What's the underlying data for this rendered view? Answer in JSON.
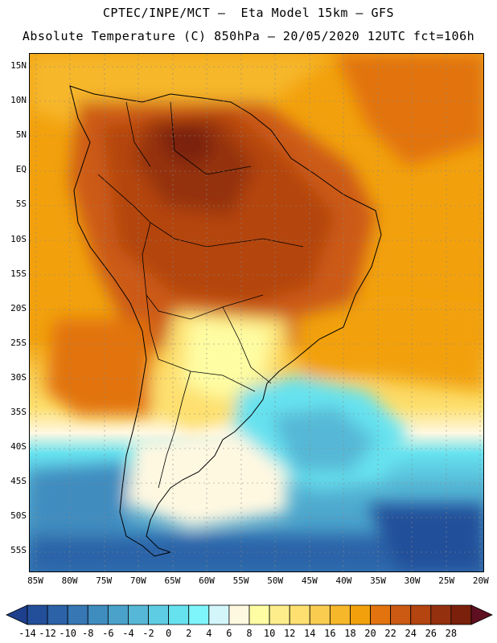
{
  "header": {
    "line1": "CPTEC/INPE/MCT –  Eta Model 15km – GFS",
    "line2": "Absolute Temperature (C) 850hPa – 20/05/2020 12UTC fct=106h"
  },
  "map": {
    "lat_labels": [
      "15N",
      "10N",
      "5N",
      "EQ",
      "5S",
      "10S",
      "15S",
      "20S",
      "25S",
      "30S",
      "35S",
      "40S",
      "45S",
      "50S",
      "55S"
    ],
    "lon_labels": [
      "85W",
      "80W",
      "75W",
      "70W",
      "65W",
      "60W",
      "55W",
      "50W",
      "45W",
      "40W",
      "35W",
      "30W",
      "25W",
      "20W"
    ],
    "lat_range": [
      17.5,
      -57.5
    ],
    "lon_range": [
      -87,
      -20
    ],
    "grid": true
  },
  "legend": {
    "ticks": [
      "-14",
      "-12",
      "-10",
      "-8",
      "-6",
      "-4",
      "-2",
      "0",
      "2",
      "4",
      "6",
      "8",
      "10",
      "12",
      "14",
      "16",
      "18",
      "20",
      "22",
      "24",
      "26",
      "28"
    ],
    "colors": [
      "#1e3f8c",
      "#234f9a",
      "#2c63a8",
      "#3677b4",
      "#3f8cbf",
      "#4aa2cb",
      "#56b8d6",
      "#5ecde3",
      "#66e2ef",
      "#7df5fb",
      "#d3f6fb",
      "#fff8e1",
      "#fefda3",
      "#feee8b",
      "#fde06f",
      "#f9cc4f",
      "#f6b72a",
      "#f2a10d",
      "#e2730e",
      "#cc5a12",
      "#b44410",
      "#94300d",
      "#7a200b",
      "#5e0f20"
    ]
  }
}
